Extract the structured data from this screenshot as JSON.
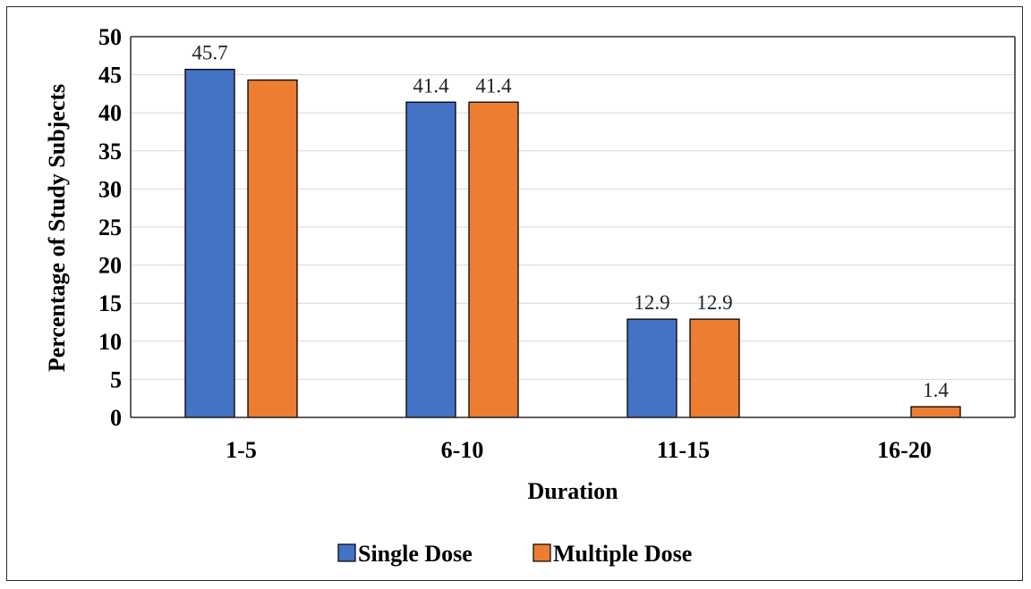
{
  "chart_data": {
    "type": "bar",
    "categories": [
      "1-5",
      "6-10",
      "11-15",
      "16-20"
    ],
    "series": [
      {
        "name": "Single Dose",
        "values": [
          45.7,
          41.4,
          12.9,
          0
        ],
        "color": "#4472C4",
        "data_labels": [
          "45.7",
          "41.4",
          "12.9",
          ""
        ]
      },
      {
        "name": "Multiple Dose",
        "values": [
          44.3,
          41.4,
          12.9,
          1.4
        ],
        "color": "#ED7D31",
        "data_labels": [
          "",
          "41.4",
          "12.9",
          "1.4"
        ]
      }
    ],
    "xlabel": "Duration",
    "ylabel": "Percentage of Study Subjects",
    "ylim": [
      0,
      50
    ],
    "yticks": [
      "0",
      "5",
      "10",
      "15",
      "20",
      "25",
      "30",
      "35",
      "40",
      "45",
      "50"
    ],
    "grid": true,
    "legend_position": "bottom"
  }
}
